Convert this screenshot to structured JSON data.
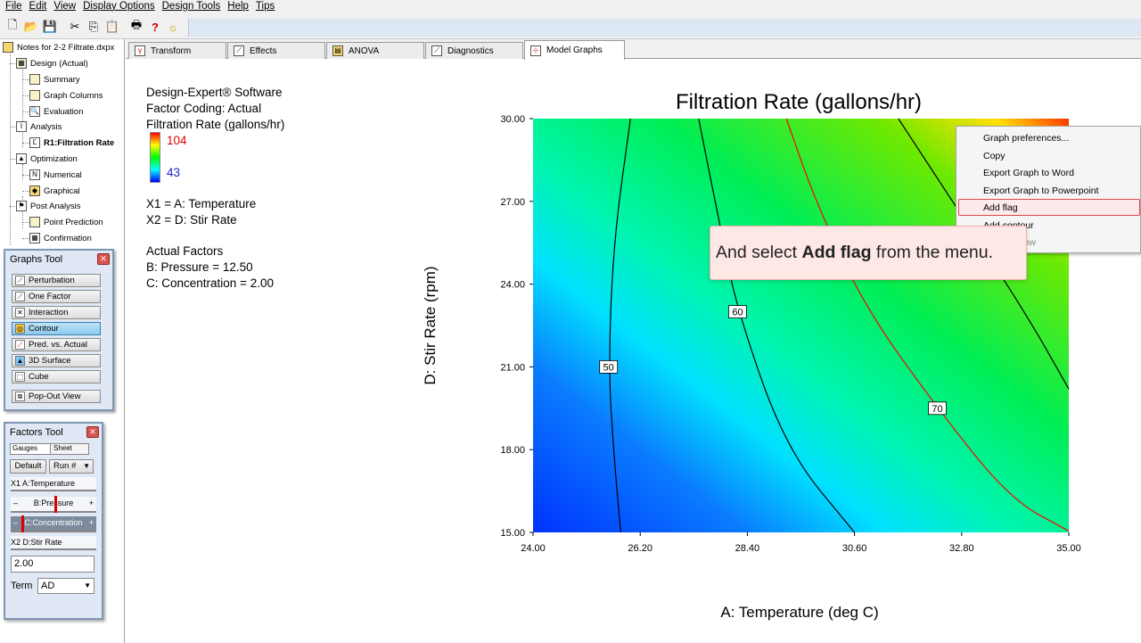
{
  "menu": [
    "File",
    "Edit",
    "View",
    "Display Options",
    "Design Tools",
    "Help",
    "Tips"
  ],
  "toolbar_icons": [
    "new-icon",
    "open-icon",
    "save-icon",
    "cut-icon",
    "copy-icon",
    "paste-icon",
    "print-icon",
    "help-icon",
    "tip-icon"
  ],
  "tree": {
    "root": "Notes for 2-2 Filtrate.dxpx",
    "design": "Design (Actual)",
    "summary": "Summary",
    "graph_columns": "Graph Columns",
    "evaluation": "Evaluation",
    "analysis": "Analysis",
    "r1": "R1:Filtration Rate",
    "optimization": "Optimization",
    "numerical": "Numerical",
    "graphical": "Graphical",
    "post_analysis": "Post Analysis",
    "point_prediction": "Point Prediction",
    "confirmation": "Confirmation"
  },
  "graphs_tool": {
    "title": "Graphs Tool",
    "buttons": [
      "Perturbation",
      "One Factor",
      "Interaction",
      "Contour",
      "Pred. vs. Actual",
      "3D Surface",
      "Cube"
    ],
    "popout": "Pop-Out View"
  },
  "factors_tool": {
    "title": "Factors Tool",
    "tab_gauges": "Gauges",
    "tab_sheet": "Sheet",
    "default_btn": "Default",
    "run_btn": "Run #",
    "x1_tag": "X1",
    "x1": "A:Temperature",
    "pressure": "B:Pressure",
    "concentration": "C:Concentration",
    "x2_tag": "X2",
    "x2": "D:Stir Rate",
    "value": "2.00",
    "term_label": "Term",
    "term_value": "AD",
    "minus": "–",
    "plus": "+"
  },
  "tabs": [
    "Transform",
    "Effects",
    "ANOVA",
    "Diagnostics",
    "Model Graphs"
  ],
  "info": {
    "software": "Design-Expert® Software",
    "coding": "Factor Coding: Actual",
    "response": "Filtration Rate (gallons/hr)",
    "max": "104",
    "min": "43",
    "x1": "X1 = A: Temperature",
    "x2": "X2 = D: Stir Rate",
    "actual_factors": "Actual Factors",
    "b": "B: Pressure = 12.50",
    "c": "C: Concentration = 2.00"
  },
  "context_menu": [
    "Graph preferences...",
    "Copy",
    "Export Graph to Word",
    "Export Graph to Powerpoint",
    "Add flag",
    "Add contour",
    "New window"
  ],
  "callout": {
    "pre": "And select ",
    "bold": "Add flag",
    "post": " from the menu."
  },
  "colors": {
    "high": "#ff0000",
    "low": "#0000ff",
    "accent": "#e04848"
  },
  "chart_data": {
    "type": "contour",
    "title": "Filtration Rate (gallons/hr)",
    "xlabel": "A: Temperature (deg C)",
    "ylabel": "D: Stir Rate (rpm)",
    "xlim": [
      24,
      35
    ],
    "ylim": [
      15,
      30
    ],
    "x_ticks": [
      "24.00",
      "26.20",
      "28.40",
      "30.60",
      "32.80",
      "35.00"
    ],
    "y_ticks": [
      "15.00",
      "18.00",
      "21.00",
      "24.00",
      "27.00",
      "30.00"
    ],
    "color_range": [
      43,
      104
    ],
    "contours": [
      {
        "level": 50,
        "label": "50",
        "color": "#000000",
        "points": [
          [
            26.0,
            30.0
          ],
          [
            25.65,
            25.5
          ],
          [
            25.55,
            21.0
          ],
          [
            25.65,
            18.0
          ],
          [
            25.8,
            15.0
          ]
        ]
      },
      {
        "level": 60,
        "label": "60",
        "color": "#000000",
        "points": [
          [
            27.4,
            30.0
          ],
          [
            27.85,
            26.0
          ],
          [
            28.2,
            23.0
          ],
          [
            29.2,
            18.0
          ],
          [
            30.6,
            15.0
          ]
        ]
      },
      {
        "level": 70,
        "label": "70",
        "color": "#ff0000",
        "points": [
          [
            29.2,
            30.0
          ],
          [
            29.8,
            27.0
          ],
          [
            30.8,
            23.2
          ],
          [
            32.3,
            19.5
          ],
          [
            33.8,
            16.2
          ],
          [
            35.0,
            15.05
          ]
        ]
      },
      {
        "level": 80,
        "label": "",
        "color": "#000000",
        "points": [
          [
            31.5,
            30.0
          ],
          [
            32.5,
            27.3
          ],
          [
            34.1,
            23.0
          ],
          [
            35.0,
            20.2
          ]
        ]
      }
    ]
  }
}
